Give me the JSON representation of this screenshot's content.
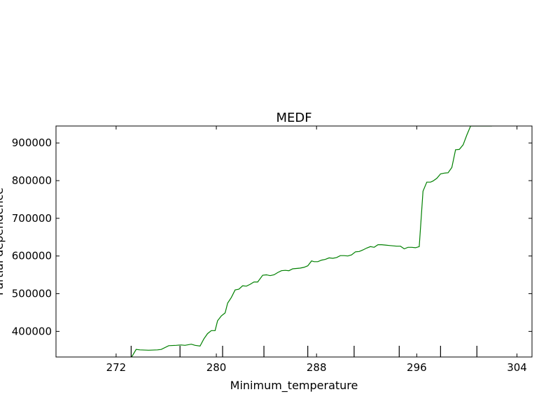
{
  "chart_data": {
    "type": "line",
    "title": "MEDF",
    "xlabel": "Minimum_temperature",
    "ylabel": "Partial dependence",
    "xlim": [
      267.2,
      305.2
    ],
    "ylim": [
      332000,
      945000
    ],
    "xticks": [
      272,
      280,
      288,
      296,
      304
    ],
    "xtick_labels": [
      "272",
      "280",
      "288",
      "296",
      "304"
    ],
    "yticks": [
      400000,
      500000,
      600000,
      700000,
      800000,
      900000
    ],
    "ytick_labels": [
      "400000",
      "500000",
      "600000",
      "700000",
      "800000",
      "900000"
    ],
    "rug_ticks": [
      273.2,
      277.1,
      280.5,
      283.8,
      287.3,
      291.0,
      294.6,
      297.9,
      300.8
    ],
    "series": [
      {
        "color": "#008000",
        "x": [
          271.9,
          272.5,
          273.2,
          273.6,
          273.9,
          274.6,
          275.3,
          275.6,
          276.2,
          276.8,
          277.2,
          277.5,
          278.0,
          278.3,
          278.7,
          279.0,
          279.3,
          279.6,
          279.9,
          280.1,
          280.4,
          280.7,
          280.9,
          281.2,
          281.5,
          281.8,
          282.1,
          282.4,
          282.7,
          283.0,
          283.3,
          283.7,
          284.0,
          284.3,
          284.6,
          284.9,
          285.2,
          285.5,
          285.8,
          286.1,
          286.4,
          286.7,
          287.0,
          287.3,
          287.6,
          287.8,
          288.1,
          288.4,
          288.7,
          289.0,
          289.3,
          289.6,
          289.9,
          290.2,
          290.5,
          290.8,
          291.1,
          291.4,
          291.7,
          292.0,
          292.3,
          292.6,
          292.9,
          293.2,
          293.5,
          293.8,
          294.1,
          294.4,
          294.7,
          295.0,
          295.3,
          295.6,
          295.9,
          296.2,
          296.5,
          296.8,
          297.1,
          297.3,
          297.6,
          297.9,
          298.2,
          298.5,
          298.8,
          299.1,
          299.4,
          299.7,
          300.0,
          300.3,
          300.6,
          300.9,
          301.2,
          301.6,
          302.0
        ],
        "y": [
          332000,
          330000,
          330000,
          352000,
          351000,
          350000,
          351000,
          352000,
          362000,
          363000,
          364000,
          363000,
          366000,
          363000,
          361000,
          380000,
          394000,
          402000,
          402000,
          428000,
          441000,
          449000,
          475000,
          490000,
          510000,
          512000,
          521000,
          520000,
          525000,
          531000,
          531000,
          549000,
          550000,
          548000,
          550000,
          556000,
          561000,
          562000,
          561000,
          566000,
          567000,
          568000,
          570000,
          574000,
          587000,
          585000,
          585000,
          589000,
          591000,
          595000,
          594000,
          596000,
          601000,
          601000,
          600000,
          603000,
          611000,
          612000,
          616000,
          621000,
          625000,
          623000,
          630000,
          630000,
          629000,
          628000,
          627000,
          626000,
          626000,
          619000,
          623000,
          623000,
          622000,
          625000,
          772000,
          796000,
          796000,
          799000,
          806000,
          818000,
          820000,
          821000,
          835000,
          882000,
          883000,
          895000,
          921000,
          945000,
          945000,
          945000,
          945000,
          945000,
          945000
        ]
      }
    ]
  }
}
